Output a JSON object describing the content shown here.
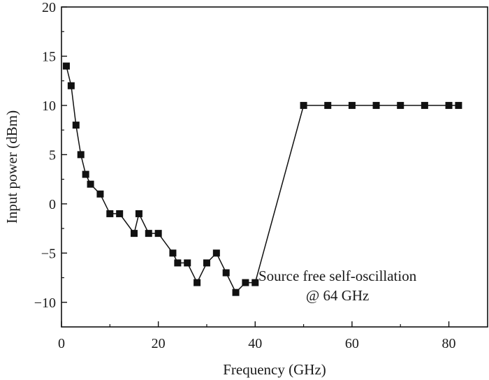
{
  "chart_data": {
    "type": "line",
    "title": "",
    "xlabel": "Frequency (GHz)",
    "ylabel": "Input power (dBm)",
    "xlim": [
      0,
      88
    ],
    "ylim": [
      -12.5,
      20
    ],
    "xticks": [
      0,
      20,
      40,
      60,
      80
    ],
    "yticks": [
      -10,
      -5,
      0,
      5,
      10,
      15,
      20
    ],
    "grid": false,
    "legend": "none",
    "marker": "square",
    "series": [
      {
        "x": [
          1,
          2,
          3,
          4,
          5,
          6,
          8,
          10,
          12,
          15,
          16,
          18,
          20,
          23,
          24,
          26,
          28,
          30,
          32,
          34,
          36,
          38,
          40,
          50,
          55,
          60,
          65,
          70,
          75,
          80,
          82
        ],
        "y": [
          14,
          12,
          8,
          5,
          3,
          2,
          1,
          -1,
          -1,
          -3,
          -1,
          -3,
          -3,
          -5,
          -6,
          -6,
          -8,
          -6,
          -5,
          -7,
          -9,
          -8,
          -8,
          10,
          10,
          10,
          10,
          10,
          10,
          10,
          10
        ]
      }
    ],
    "annotations": [
      {
        "text_lines": [
          "Source free self-oscillation",
          "@ 64 GHz"
        ],
        "x": 57,
        "y": -7.8
      }
    ],
    "colors": {
      "line": "#111111",
      "marker": "#111111",
      "axis": "#111111"
    }
  }
}
